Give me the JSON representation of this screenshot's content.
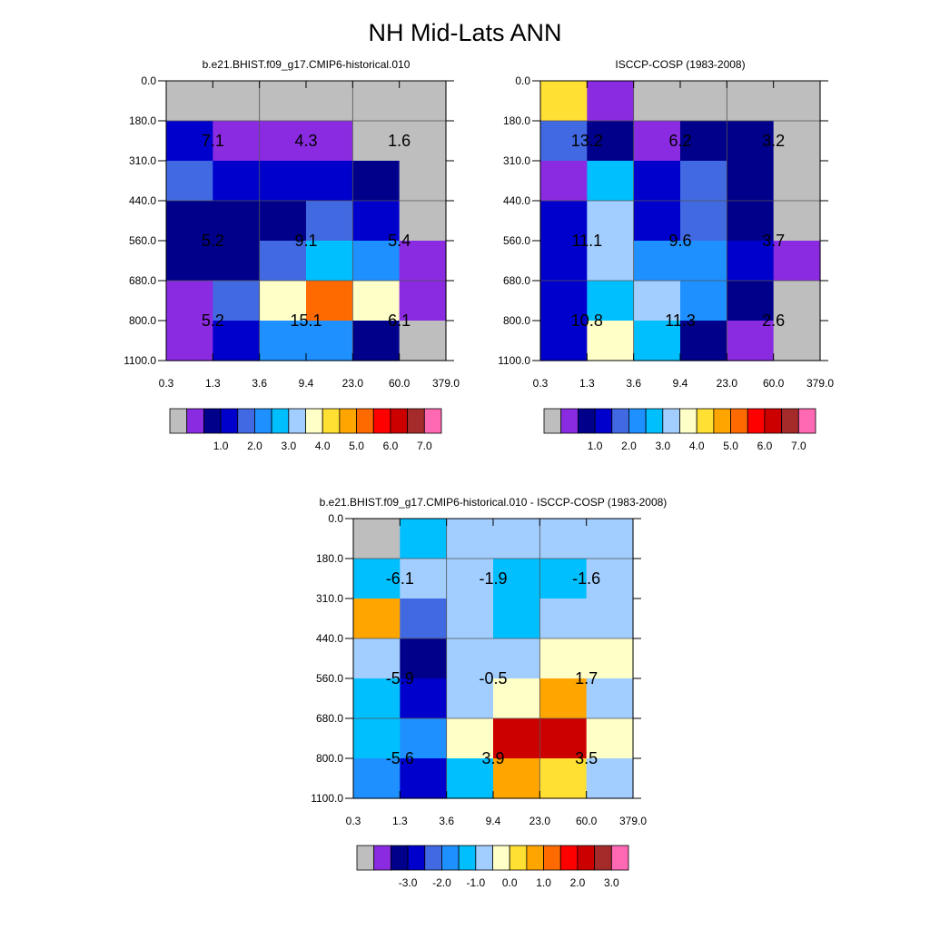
{
  "title": "NH Mid-Lats ANN",
  "palette": {
    "gray": "#bebebe",
    "violet": "#8a2be2",
    "navy": "#00008b",
    "blue": "#0000cd",
    "royal": "#4169e1",
    "dodger": "#1e90ff",
    "sky": "#00bfff",
    "pale": "#a2cdff",
    "cream": "#ffffc8",
    "yellow": "#ffe033",
    "amber": "#ffa500",
    "orange": "#ff6a00",
    "red": "#ff0000",
    "crimson": "#cd0000",
    "brown": "#a52a2a",
    "pink": "#ff69b4"
  },
  "chart_data": [
    {
      "type": "heatmap",
      "id": "model",
      "title": "b.e21.BHIST.f09_g17.CMIP6-historical.010",
      "x_ticks": [
        "0.3",
        "1.3",
        "3.6",
        "9.4",
        "23.0",
        "60.0",
        "379.0"
      ],
      "y_ticks": [
        "0.0",
        "180.0",
        "310.0",
        "440.0",
        "560.0",
        "680.0",
        "800.0",
        "1100.0"
      ],
      "cells": [
        [
          "gray",
          "gray",
          "gray",
          "gray",
          "gray",
          "gray"
        ],
        [
          "blue",
          "violet",
          "violet",
          "violet",
          "gray",
          "gray"
        ],
        [
          "royal",
          "blue",
          "blue",
          "blue",
          "navy",
          "gray"
        ],
        [
          "navy",
          "navy",
          "navy",
          "royal",
          "blue",
          "gray"
        ],
        [
          "navy",
          "navy",
          "royal",
          "sky",
          "dodger",
          "violet"
        ],
        [
          "violet",
          "royal",
          "cream",
          "orange",
          "cream",
          "violet"
        ],
        [
          "violet",
          "blue",
          "dodger",
          "dodger",
          "navy",
          "gray"
        ]
      ],
      "grid_lines_x": [
        2,
        4
      ],
      "grid_lines_y": [
        1,
        3,
        5
      ],
      "annotations": [
        {
          "row": 1.5,
          "col": 1,
          "text": "7.1"
        },
        {
          "row": 1.5,
          "col": 3,
          "text": "4.3"
        },
        {
          "row": 1.5,
          "col": 5,
          "text": "1.6"
        },
        {
          "row": 4,
          "col": 1,
          "text": "5.2"
        },
        {
          "row": 4,
          "col": 3,
          "text": "9.1"
        },
        {
          "row": 4,
          "col": 5,
          "text": "5.4"
        },
        {
          "row": 6,
          "col": 1,
          "text": "5.2"
        },
        {
          "row": 6,
          "col": 3,
          "text": "15.1"
        },
        {
          "row": 6,
          "col": 5,
          "text": "6.1"
        }
      ],
      "colorbar": {
        "colors": [
          "gray",
          "violet",
          "navy",
          "blue",
          "royal",
          "dodger",
          "sky",
          "pale",
          "cream",
          "yellow",
          "amber",
          "orange",
          "red",
          "crimson",
          "brown",
          "pink"
        ],
        "labels": [
          "1.0",
          "2.0",
          "3.0",
          "4.0",
          "5.0",
          "6.0",
          "7.0"
        ]
      }
    },
    {
      "type": "heatmap",
      "id": "obs",
      "title": "ISCCP-COSP (1983-2008)",
      "x_ticks": [
        "0.3",
        "1.3",
        "3.6",
        "9.4",
        "23.0",
        "60.0",
        "379.0"
      ],
      "y_ticks": [
        "0.0",
        "180.0",
        "310.0",
        "440.0",
        "560.0",
        "680.0",
        "800.0",
        "1100.0"
      ],
      "cells": [
        [
          "yellow",
          "violet",
          "gray",
          "gray",
          "gray",
          "gray"
        ],
        [
          "royal",
          "navy",
          "violet",
          "navy",
          "navy",
          "gray"
        ],
        [
          "violet",
          "sky",
          "blue",
          "royal",
          "navy",
          "gray"
        ],
        [
          "blue",
          "pale",
          "blue",
          "royal",
          "navy",
          "gray"
        ],
        [
          "blue",
          "pale",
          "dodger",
          "dodger",
          "blue",
          "violet"
        ],
        [
          "blue",
          "sky",
          "pale",
          "dodger",
          "navy",
          "gray"
        ],
        [
          "blue",
          "cream",
          "sky",
          "navy",
          "violet",
          "gray"
        ]
      ],
      "grid_lines_x": [
        2,
        4
      ],
      "grid_lines_y": [
        1,
        3,
        5
      ],
      "annotations": [
        {
          "row": 1.5,
          "col": 1,
          "text": "13.2"
        },
        {
          "row": 1.5,
          "col": 3,
          "text": "6.2"
        },
        {
          "row": 1.5,
          "col": 5,
          "text": "3.2"
        },
        {
          "row": 4,
          "col": 1,
          "text": "11.1"
        },
        {
          "row": 4,
          "col": 3,
          "text": "9.6"
        },
        {
          "row": 4,
          "col": 5,
          "text": "3.7"
        },
        {
          "row": 6,
          "col": 1,
          "text": "10.8"
        },
        {
          "row": 6,
          "col": 3,
          "text": "11.3"
        },
        {
          "row": 6,
          "col": 5,
          "text": "2.6"
        }
      ],
      "colorbar": {
        "colors": [
          "gray",
          "violet",
          "navy",
          "blue",
          "royal",
          "dodger",
          "sky",
          "pale",
          "cream",
          "yellow",
          "amber",
          "orange",
          "red",
          "crimson",
          "brown",
          "pink"
        ],
        "labels": [
          "1.0",
          "2.0",
          "3.0",
          "4.0",
          "5.0",
          "6.0",
          "7.0"
        ]
      }
    },
    {
      "type": "heatmap",
      "id": "diff",
      "title": "b.e21.BHIST.f09_g17.CMIP6-historical.010 - ISCCP-COSP (1983-2008)",
      "x_ticks": [
        "0.3",
        "1.3",
        "3.6",
        "9.4",
        "23.0",
        "60.0",
        "379.0"
      ],
      "y_ticks": [
        "0.0",
        "180.0",
        "310.0",
        "440.0",
        "560.0",
        "680.0",
        "800.0",
        "1100.0"
      ],
      "cells": [
        [
          "gray",
          "sky",
          "pale",
          "pale",
          "pale",
          "pale"
        ],
        [
          "sky",
          "pale",
          "pale",
          "sky",
          "sky",
          "pale"
        ],
        [
          "amber",
          "royal",
          "pale",
          "sky",
          "pale",
          "pale"
        ],
        [
          "pale",
          "navy",
          "pale",
          "pale",
          "cream",
          "cream"
        ],
        [
          "sky",
          "blue",
          "pale",
          "cream",
          "amber",
          "pale"
        ],
        [
          "sky",
          "dodger",
          "cream",
          "crimson",
          "crimson",
          "cream"
        ],
        [
          "dodger",
          "blue",
          "sky",
          "amber",
          "yellow",
          "pale"
        ]
      ],
      "grid_lines_x": [
        2,
        4
      ],
      "grid_lines_y": [
        1,
        3,
        5
      ],
      "annotations": [
        {
          "row": 1.5,
          "col": 1,
          "text": "-6.1"
        },
        {
          "row": 1.5,
          "col": 3,
          "text": "-1.9"
        },
        {
          "row": 1.5,
          "col": 5,
          "text": "-1.6"
        },
        {
          "row": 4,
          "col": 1,
          "text": "-5.9"
        },
        {
          "row": 4,
          "col": 3,
          "text": "-0.5"
        },
        {
          "row": 4,
          "col": 5,
          "text": "1.7"
        },
        {
          "row": 6,
          "col": 1,
          "text": "-5.6"
        },
        {
          "row": 6,
          "col": 3,
          "text": "3.9"
        },
        {
          "row": 6,
          "col": 5,
          "text": "3.5"
        }
      ],
      "colorbar": {
        "colors": [
          "gray",
          "violet",
          "navy",
          "blue",
          "royal",
          "dodger",
          "sky",
          "pale",
          "cream",
          "yellow",
          "amber",
          "orange",
          "red",
          "crimson",
          "brown",
          "pink"
        ],
        "labels": [
          "-3.0",
          "-2.0",
          "-1.0",
          "0.0",
          "1.0",
          "2.0",
          "3.0"
        ]
      }
    }
  ]
}
